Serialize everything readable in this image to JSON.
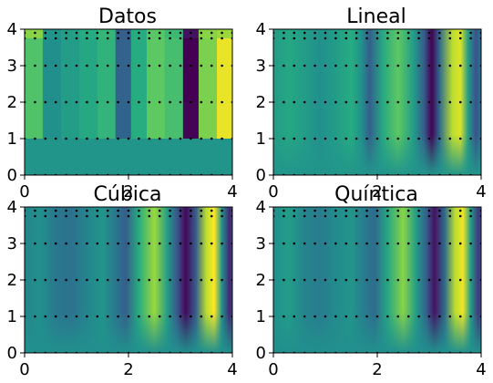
{
  "chart_data": [
    {
      "type": "heatmap",
      "title": "Datos",
      "xlim": [
        0,
        4
      ],
      "ylim": [
        0,
        4
      ],
      "xticks": [
        "0",
        "2",
        "4"
      ],
      "yticks": [
        "0",
        "1",
        "2",
        "3",
        "4"
      ],
      "point_x": [
        0,
        0.2,
        0.4,
        0.6,
        0.8,
        1.0,
        1.2,
        1.4,
        1.6,
        1.8,
        2.0,
        2.2,
        2.4,
        2.6,
        2.8,
        3.0,
        3.2,
        3.4,
        3.6,
        3.8,
        4.0
      ],
      "point_rows_y": [
        1.0,
        2.0,
        3.0,
        3.75,
        3.9
      ],
      "bottom_row": {
        "x": [
          0,
          0.2,
          0.4,
          0.6,
          0.8,
          1.0,
          1.2,
          1.4,
          1.6,
          1.8,
          2.0,
          2.2,
          2.4,
          2.6,
          2.8,
          3.0,
          3.2,
          3.4,
          3.6,
          3.8,
          4.0
        ],
        "y": [
          0.0
        ]
      },
      "blocks": [
        {
          "x0": 0.0,
          "x1": 0.35,
          "v": 0.72,
          "top": 0.82
        },
        {
          "x0": 0.35,
          "x1": 0.7,
          "v": 0.5,
          "top": 0.52
        },
        {
          "x0": 0.7,
          "x1": 1.05,
          "v": 0.55,
          "top": 0.56
        },
        {
          "x0": 1.05,
          "x1": 1.4,
          "v": 0.6,
          "top": 0.62
        },
        {
          "x0": 1.4,
          "x1": 1.75,
          "v": 0.65,
          "top": 0.66
        },
        {
          "x0": 1.75,
          "x1": 2.05,
          "v": 0.32,
          "top": 0.3
        },
        {
          "x0": 2.05,
          "x1": 2.35,
          "v": 0.62,
          "top": 0.62
        },
        {
          "x0": 2.35,
          "x1": 2.7,
          "v": 0.75,
          "top": 0.74
        },
        {
          "x0": 2.7,
          "x1": 3.05,
          "v": 0.7,
          "top": 0.68
        },
        {
          "x0": 3.05,
          "x1": 3.35,
          "v": 0.0,
          "top": 0.05
        },
        {
          "x0": 3.35,
          "x1": 3.7,
          "v": 0.8,
          "top": 0.82
        },
        {
          "x0": 3.7,
          "x1": 4.0,
          "v": 0.97,
          "top": 0.85
        }
      ],
      "base_value": 0.52
    },
    {
      "type": "heatmap",
      "title": "Lineal",
      "xlim": [
        0,
        4
      ],
      "ylim": [
        0,
        4
      ],
      "xticks": [
        "0",
        "2",
        "4"
      ],
      "yticks": [
        "0",
        "1",
        "2",
        "3",
        "4"
      ],
      "profile_x": [
        0.0,
        0.3,
        0.6,
        0.9,
        1.2,
        1.5,
        1.7,
        1.85,
        2.1,
        2.4,
        2.7,
        2.9,
        3.05,
        3.2,
        3.45,
        3.6,
        3.75,
        3.9,
        4.0
      ],
      "profile_v": [
        0.55,
        0.6,
        0.55,
        0.5,
        0.55,
        0.62,
        0.5,
        0.3,
        0.6,
        0.75,
        0.55,
        0.3,
        0.0,
        0.35,
        0.9,
        0.95,
        0.55,
        0.25,
        0.4
      ],
      "base_value": 0.52
    },
    {
      "type": "heatmap",
      "title": "Cúbica",
      "xlim": [
        0,
        4
      ],
      "ylim": [
        0,
        4
      ],
      "xticks": [
        "0",
        "2",
        "4"
      ],
      "yticks": [
        "0",
        "1",
        "2",
        "3",
        "4"
      ],
      "profile_x": [
        0.0,
        0.3,
        0.6,
        0.9,
        1.2,
        1.5,
        1.75,
        1.95,
        2.2,
        2.5,
        2.75,
        2.95,
        3.1,
        3.3,
        3.5,
        3.65,
        3.8,
        3.95,
        4.0
      ],
      "profile_v": [
        0.45,
        0.5,
        0.4,
        0.38,
        0.45,
        0.52,
        0.4,
        0.3,
        0.62,
        0.85,
        0.55,
        0.25,
        0.02,
        0.3,
        0.9,
        1.0,
        0.5,
        0.1,
        0.25
      ],
      "base_value": 0.5
    },
    {
      "type": "heatmap",
      "title": "Quíntica",
      "xlim": [
        0,
        4
      ],
      "ylim": [
        0,
        4
      ],
      "xticks": [
        "0",
        "2",
        "4"
      ],
      "yticks": [
        "0",
        "1",
        "2",
        "3",
        "4"
      ],
      "profile_x": [
        0.0,
        0.3,
        0.6,
        0.9,
        1.2,
        1.5,
        1.75,
        1.95,
        2.2,
        2.5,
        2.75,
        2.95,
        3.1,
        3.3,
        3.5,
        3.65,
        3.8,
        3.95,
        4.0
      ],
      "profile_v": [
        0.5,
        0.55,
        0.45,
        0.42,
        0.48,
        0.52,
        0.42,
        0.35,
        0.6,
        0.82,
        0.55,
        0.3,
        0.05,
        0.35,
        0.9,
        0.98,
        0.55,
        0.15,
        0.3
      ],
      "base_value": 0.5
    }
  ]
}
